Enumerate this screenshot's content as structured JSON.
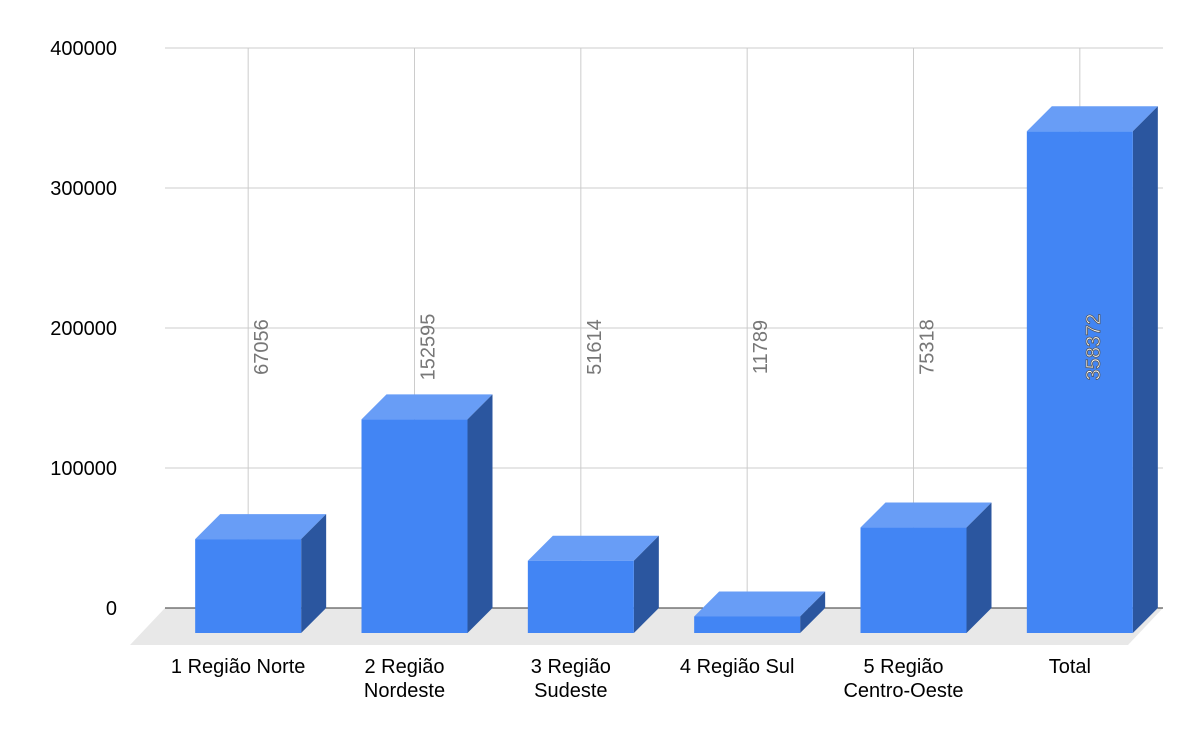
{
  "chart_data": {
    "type": "bar3d",
    "categories": [
      "1 Região Norte",
      "2 Região Nordeste",
      "3 Região Sudeste",
      "4 Região Sul",
      "5 Região Centro-Oeste",
      "Total"
    ],
    "values": [
      67056,
      152595,
      51614,
      11789,
      75318,
      358372
    ],
    "color": "#4285f4",
    "ylim": [
      0,
      400000
    ],
    "yticks": [
      0,
      100000,
      200000,
      300000,
      400000
    ],
    "grid": true
  }
}
